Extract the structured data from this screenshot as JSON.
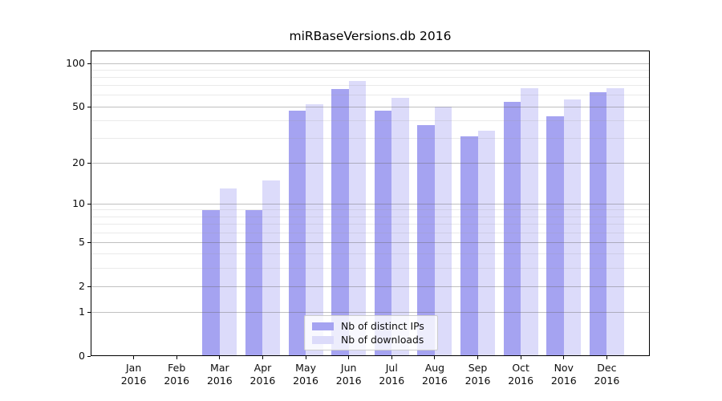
{
  "title": "miRBaseVersions.db 2016",
  "chart_data": {
    "type": "bar",
    "title": "miRBaseVersions.db 2016",
    "xlabel": "",
    "ylabel": "",
    "yscale": "log(x+1), 0 at baseline",
    "ylim": [
      0,
      123
    ],
    "grid": "horizontal only, drawn above bars",
    "legend_position": "lower center inside plot",
    "categories": [
      {
        "line1": "Jan",
        "line2": "2016"
      },
      {
        "line1": "Feb",
        "line2": "2016"
      },
      {
        "line1": "Mar",
        "line2": "2016"
      },
      {
        "line1": "Apr",
        "line2": "2016"
      },
      {
        "line1": "May",
        "line2": "2016"
      },
      {
        "line1": "Jun",
        "line2": "2016"
      },
      {
        "line1": "Jul",
        "line2": "2016"
      },
      {
        "line1": "Aug",
        "line2": "2016"
      },
      {
        "line1": "Sep",
        "line2": "2016"
      },
      {
        "line1": "Oct",
        "line2": "2016"
      },
      {
        "line1": "Nov",
        "line2": "2016"
      },
      {
        "line1": "Dec",
        "line2": "2016"
      }
    ],
    "y_ticks": [
      0,
      1,
      2,
      5,
      10,
      20,
      50,
      100
    ],
    "y_minor_ticks": [
      3,
      4,
      6,
      7,
      8,
      9,
      30,
      40,
      60,
      70,
      80,
      90
    ],
    "series": [
      {
        "name": "Nb of distinct IPs",
        "color": "#a5a3f1",
        "values": [
          0,
          0,
          9,
          9,
          47,
          66,
          47,
          37,
          31,
          54,
          43,
          63
        ]
      },
      {
        "name": "Nb of downloads",
        "color": "#dcdbfa",
        "values": [
          0,
          0,
          13,
          15,
          52,
          75,
          58,
          50,
          34,
          67,
          56,
          67
        ]
      }
    ]
  }
}
